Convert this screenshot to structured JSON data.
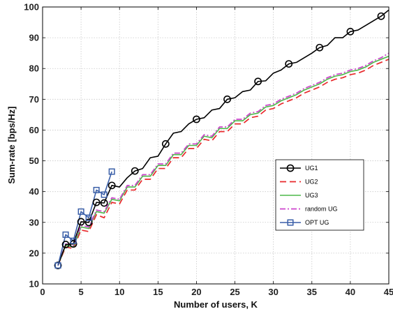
{
  "chart_data": {
    "type": "line",
    "title": "",
    "xlabel": "Number of users, K",
    "ylabel": "Sum-rate [bps/Hz]",
    "xlim": [
      0,
      45
    ],
    "ylim": [
      10,
      100
    ],
    "xticks": [
      0,
      5,
      10,
      15,
      20,
      25,
      30,
      35,
      40,
      45
    ],
    "yticks": [
      10,
      20,
      30,
      40,
      50,
      60,
      70,
      80,
      90,
      100
    ],
    "grid": true,
    "legend_position": "right-middle",
    "series": [
      {
        "name": "UG1",
        "color": "#000000",
        "line_style": "solid",
        "marker": "circle",
        "marker_x": [
          2,
          3,
          4,
          5,
          6,
          7,
          8,
          9,
          12,
          16,
          20,
          24,
          28,
          32,
          36,
          40,
          44
        ],
        "x": [
          2,
          3,
          4,
          5,
          6,
          7,
          8,
          9,
          10,
          11,
          12,
          13,
          14,
          15,
          16,
          17,
          18,
          19,
          20,
          21,
          22,
          23,
          24,
          25,
          26,
          27,
          28,
          29,
          30,
          31,
          32,
          33,
          34,
          35,
          36,
          37,
          38,
          39,
          40,
          41,
          42,
          43,
          44,
          45
        ],
        "y": [
          16,
          22.8,
          23,
          30.2,
          30,
          36.5,
          36.3,
          42,
          41.5,
          44.5,
          46.7,
          47.5,
          51,
          51.5,
          55.5,
          59,
          59.5,
          62,
          63.5,
          64,
          66.5,
          67,
          70,
          70.5,
          72.5,
          73,
          75.8,
          76,
          78.5,
          79.5,
          81.5,
          82,
          83.5,
          85,
          86.8,
          87.5,
          90,
          90,
          92,
          92.5,
          94,
          95.5,
          97,
          99
        ]
      },
      {
        "name": "UG2",
        "color": "#e8282b",
        "line_style": "dashed",
        "marker": "none",
        "x": [
          2,
          3,
          4,
          5,
          6,
          7,
          8,
          9,
          10,
          11,
          12,
          13,
          14,
          15,
          16,
          17,
          18,
          19,
          20,
          21,
          22,
          23,
          24,
          25,
          26,
          27,
          28,
          29,
          30,
          31,
          32,
          33,
          34,
          35,
          36,
          37,
          38,
          39,
          40,
          41,
          42,
          43,
          44,
          45
        ],
        "y": [
          16,
          22,
          21.5,
          27.5,
          27,
          32.5,
          31.5,
          36.5,
          36,
          40.5,
          40.5,
          44,
          44,
          47.5,
          47.5,
          51,
          51,
          54,
          54,
          57,
          56.5,
          59.5,
          59.5,
          62,
          62,
          64,
          64.5,
          66.5,
          67,
          68.5,
          69.5,
          70.5,
          72,
          73,
          74,
          75.5,
          76.5,
          77,
          78,
          78.5,
          79.5,
          81,
          82,
          83
        ]
      },
      {
        "name": "UG3",
        "color": "#4cb848",
        "line_style": "solid",
        "marker": "none",
        "x": [
          2,
          3,
          4,
          5,
          6,
          7,
          8,
          9,
          10,
          11,
          12,
          13,
          14,
          15,
          16,
          17,
          18,
          19,
          20,
          21,
          22,
          23,
          24,
          25,
          26,
          27,
          28,
          29,
          30,
          31,
          32,
          33,
          34,
          35,
          36,
          37,
          38,
          39,
          40,
          41,
          42,
          43,
          44,
          45
        ],
        "y": [
          16,
          22.5,
          22,
          28.5,
          28,
          33.5,
          33,
          37.5,
          37,
          41.5,
          41.5,
          45,
          45,
          48.5,
          48.5,
          52,
          52,
          55,
          55,
          58,
          57.5,
          60.5,
          60.5,
          63,
          63,
          65,
          65.5,
          67.5,
          68,
          69.5,
          70.5,
          71.5,
          73,
          74,
          75,
          76.5,
          77.5,
          78,
          79,
          79.5,
          80.5,
          82,
          83,
          84
        ]
      },
      {
        "name": "random UG",
        "color": "#cc44cc",
        "line_style": "dashdot",
        "marker": "none",
        "x": [
          2,
          3,
          4,
          5,
          6,
          7,
          8,
          9,
          10,
          11,
          12,
          13,
          14,
          15,
          16,
          17,
          18,
          19,
          20,
          21,
          22,
          23,
          24,
          25,
          26,
          27,
          28,
          29,
          30,
          31,
          32,
          33,
          34,
          35,
          36,
          37,
          38,
          39,
          40,
          41,
          42,
          43,
          44,
          45
        ],
        "y": [
          16,
          23,
          22.5,
          29,
          28.5,
          34,
          33.5,
          38,
          37.5,
          42,
          42,
          45.5,
          45.5,
          49,
          49,
          52.5,
          52.5,
          55.5,
          55.5,
          58.5,
          58,
          61,
          61,
          63.5,
          63.5,
          65.5,
          66,
          68,
          68.5,
          70,
          71,
          72,
          73.5,
          74.5,
          75.5,
          77,
          78,
          78.5,
          79.5,
          80,
          81,
          82.5,
          83.5,
          85
        ]
      },
      {
        "name": "OPT UG",
        "color": "#3a5fa8",
        "line_style": "solid",
        "marker": "square",
        "marker_x": [
          2,
          3,
          4,
          5,
          6,
          7,
          8,
          9
        ],
        "x": [
          2,
          3,
          4,
          5,
          6,
          7,
          8,
          9
        ],
        "y": [
          16,
          26,
          24,
          33.5,
          31.5,
          40.5,
          39,
          46.5
        ]
      }
    ]
  }
}
